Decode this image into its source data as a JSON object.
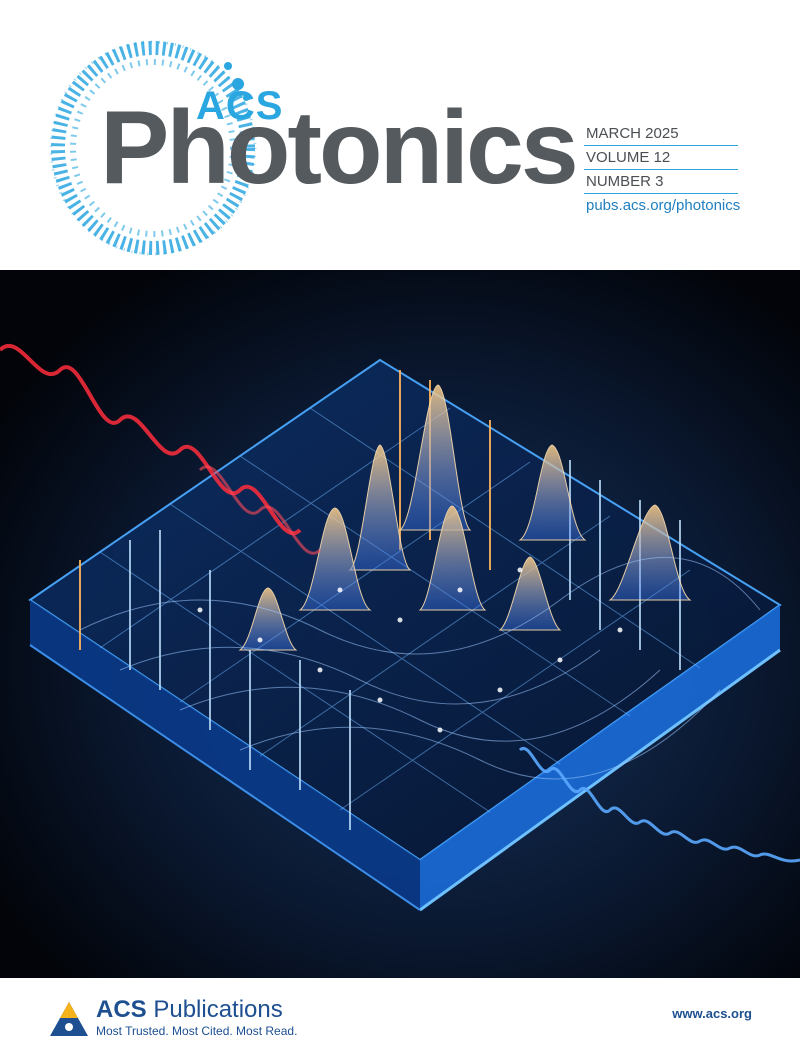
{
  "journal": {
    "brand_prefix": "ACS",
    "title": "Photonics",
    "issue": {
      "date": "MARCH 2025",
      "volume": "VOLUME 12",
      "number": "NUMBER 3",
      "url": "pubs.acs.org/photonics"
    }
  },
  "cover_image": {
    "description_icon": "photonic-chip-wave-art",
    "colors": {
      "background": "#030712",
      "glow_blue": "#3aa0ff",
      "glow_orange": "#ffb35a",
      "wave_red": "#ff2d3c"
    }
  },
  "footer": {
    "publisher_prefix": "ACS",
    "publisher_name": "Publications",
    "tagline": "Most Trusted. Most Cited. Most Read.",
    "website": "www.acs.org"
  },
  "colors": {
    "accent": "#2aa6e0",
    "title_gray": "#555a5e",
    "publisher_blue": "#1d4f91"
  }
}
